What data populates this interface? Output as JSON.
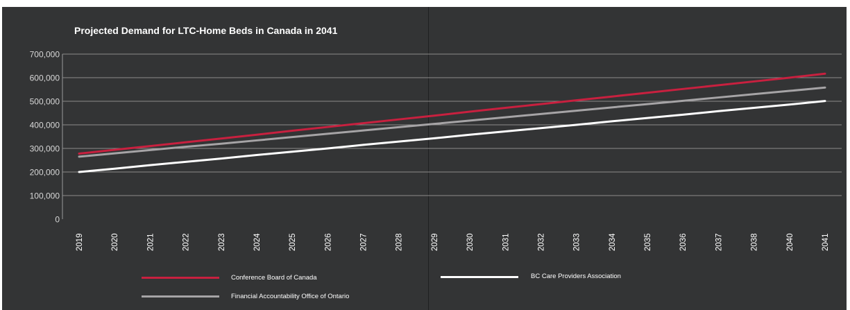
{
  "chart_data": {
    "type": "line",
    "title": "Projected Demand for LTC-Home Beds in Canada in 2041",
    "xlabel": "",
    "ylabel": "",
    "categories": [
      "2019",
      "2020",
      "2021",
      "2022",
      "2023",
      "2024",
      "2025",
      "2026",
      "2027",
      "2028",
      "2029",
      "2030",
      "2031",
      "2032",
      "2033",
      "2034",
      "2035",
      "2036",
      "2037",
      "2038",
      "2040",
      "2041"
    ],
    "yticks": [
      "0",
      "100,000",
      "200,000",
      "300,000",
      "400,000",
      "500,000",
      "600,000",
      "700,000"
    ],
    "ylim": [
      0,
      700000
    ],
    "grid": true,
    "legend_position": "bottom",
    "series": [
      {
        "name": "Conference Board of Canada",
        "color": "#c8203f",
        "values": [
          278000,
          294000,
          310000,
          326000,
          342000,
          358000,
          375000,
          391000,
          407000,
          423000,
          439000,
          456000,
          472000,
          488000,
          504000,
          520000,
          536000,
          552000,
          568000,
          584000,
          600000,
          617000
        ]
      },
      {
        "name": "Financial Accountability Office of Ontario",
        "color": "#a6a4a6",
        "values": [
          265000,
          279000,
          293000,
          307000,
          320000,
          334000,
          348000,
          362000,
          376000,
          390000,
          404000,
          418000,
          432000,
          446000,
          460000,
          474000,
          488000,
          502000,
          516000,
          530000,
          544000,
          558000
        ]
      },
      {
        "name": "BC Care Providers Association",
        "color": "#ffffff",
        "values": [
          200000,
          214000,
          229000,
          243000,
          257000,
          272000,
          286000,
          300000,
          315000,
          329000,
          343000,
          358000,
          372000,
          386000,
          400000,
          415000,
          429000,
          443000,
          458000,
          472000,
          486000,
          501000
        ]
      }
    ]
  }
}
